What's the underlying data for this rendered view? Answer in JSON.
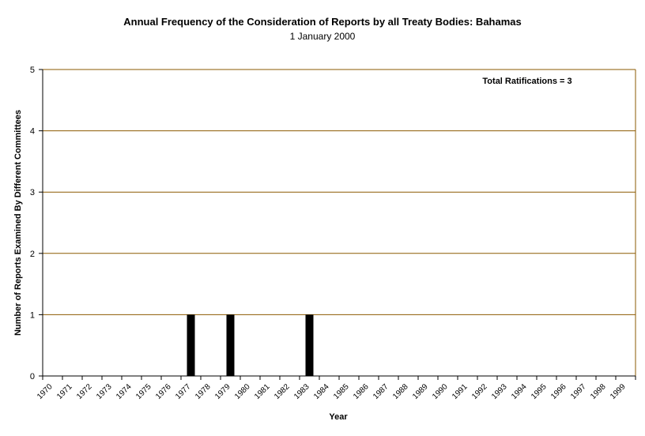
{
  "chart_data": {
    "type": "bar",
    "title": "Annual Frequency of the Consideration of Reports by all Treaty Bodies: Bahamas",
    "subtitle": "1 January 2000",
    "xlabel": "Year",
    "ylabel": "Number of Reports Examined By Different Committees",
    "annotation": "Total Ratifications = 3",
    "ylim": [
      0,
      5
    ],
    "yticks": [
      0,
      1,
      2,
      3,
      4,
      5
    ],
    "grid": true,
    "categories": [
      "1970",
      "1971",
      "1972",
      "1973",
      "1974",
      "1975",
      "1976",
      "1977",
      "1978",
      "1979",
      "1980",
      "1981",
      "1982",
      "1983",
      "1984",
      "1985",
      "1986",
      "1987",
      "1988",
      "1989",
      "1990",
      "1991",
      "1992",
      "1993",
      "1994",
      "1995",
      "1996",
      "1997",
      "1998",
      "1999"
    ],
    "values": [
      0,
      0,
      0,
      0,
      0,
      0,
      0,
      1,
      0,
      1,
      0,
      0,
      0,
      1,
      0,
      0,
      0,
      0,
      0,
      0,
      0,
      0,
      0,
      0,
      0,
      0,
      0,
      0,
      0,
      0
    ],
    "colors": {
      "bar": "#000000",
      "grid": "#8b5a00",
      "frame": "#8b5a00",
      "axis": "#000000"
    }
  }
}
